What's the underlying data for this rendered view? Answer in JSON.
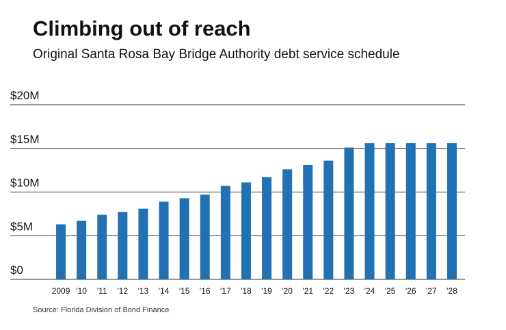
{
  "chart_data": {
    "type": "bar",
    "title": "Climbing out of reach",
    "subtitle": "Original Santa Rosa Bay Bridge Authority debt service schedule",
    "source": "Source: Florida Division of Bond Finance",
    "categories": [
      "2009",
      "'10",
      "'11",
      "'12",
      "'13",
      "'14",
      "'15",
      "'16",
      "'17",
      "'18",
      "'19",
      "'20",
      "'21",
      "'22",
      "'23",
      "'24",
      "'25",
      "'26",
      "'27",
      "'28"
    ],
    "values": [
      6300000,
      6700000,
      7400000,
      7700000,
      8100000,
      8900000,
      9300000,
      9700000,
      10700000,
      11100000,
      11700000,
      12600000,
      13100000,
      13600000,
      15100000,
      15600000,
      15600000,
      15600000,
      15600000,
      15600000
    ],
    "color": "#2271b3",
    "ylim": [
      0,
      20000000
    ],
    "yticks": [
      {
        "value": 0,
        "label": "$0"
      },
      {
        "value": 5000000,
        "label": "$5M"
      },
      {
        "value": 10000000,
        "label": "$10M"
      },
      {
        "value": 15000000,
        "label": "$15M"
      },
      {
        "value": 20000000,
        "label": "$20M"
      }
    ],
    "grid": true
  }
}
